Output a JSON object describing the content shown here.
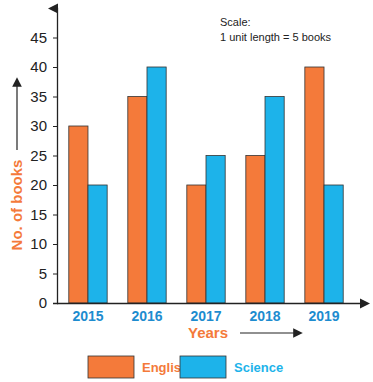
{
  "chart_data": {
    "type": "bar",
    "annotations": [
      "Scale:",
      "1 unit length = 5 books"
    ],
    "x_label": "Years",
    "y_label": "No. of books",
    "categories": [
      "2015",
      "2016",
      "2017",
      "2018",
      "2019"
    ],
    "series": [
      {
        "name": "English",
        "color": "#f47a3a",
        "values": [
          30,
          35,
          20,
          25,
          40
        ]
      },
      {
        "name": "Science",
        "color": "#1db3ea",
        "values": [
          20,
          40,
          25,
          35,
          20
        ]
      }
    ],
    "ylim": [
      0,
      50
    ],
    "yticks": [
      0,
      5,
      10,
      15,
      20,
      25,
      30,
      35,
      40,
      45
    ],
    "grid": false,
    "legend": "bottom"
  }
}
